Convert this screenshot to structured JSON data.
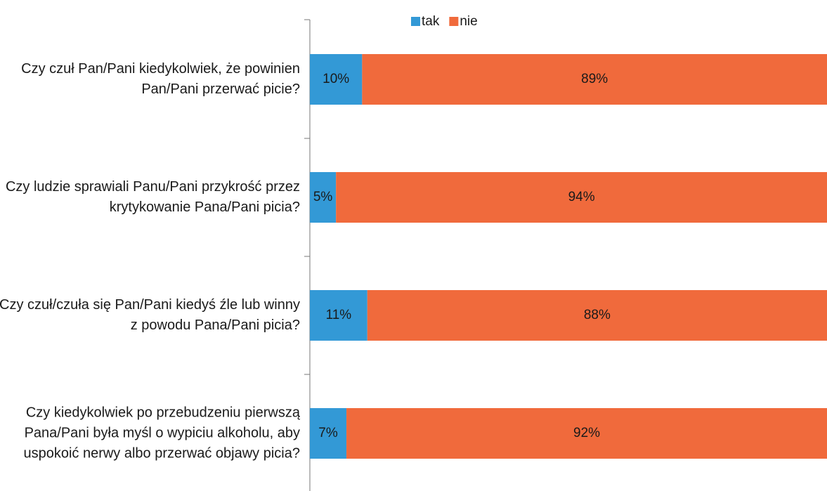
{
  "chart_data": {
    "type": "stacked_barh",
    "categories": [
      "Czy czuł Pan/Pani kiedykolwiek, że powinien Pan/Pani przerwać picie?",
      "Czy ludzie sprawiali Panu/Pani przykrość przez krytykowanie Pana/Pani picia?",
      "Czy czuł/czuła się Pan/Pani kiedyś źle lub winny z powodu Pana/Pani picia?",
      "Czy kiedykolwiek po przebudzeniu pierwszą Pana/Pani była myśl o wypiciu alkoholu, aby uspokoić nerwy albo przerwać objawy picia?"
    ],
    "series": [
      {
        "name": "tak",
        "color": "#3399d6",
        "values": [
          10,
          5,
          11,
          7
        ],
        "value_labels": [
          "10%",
          "5%",
          "11%",
          "7%"
        ]
      },
      {
        "name": "nie",
        "color": "#f06a3c",
        "values": [
          89,
          94,
          88,
          92
        ],
        "value_labels": [
          "89%",
          "94%",
          "88%",
          "92%"
        ]
      }
    ],
    "xlim": [
      0,
      100
    ],
    "legend": "top"
  }
}
